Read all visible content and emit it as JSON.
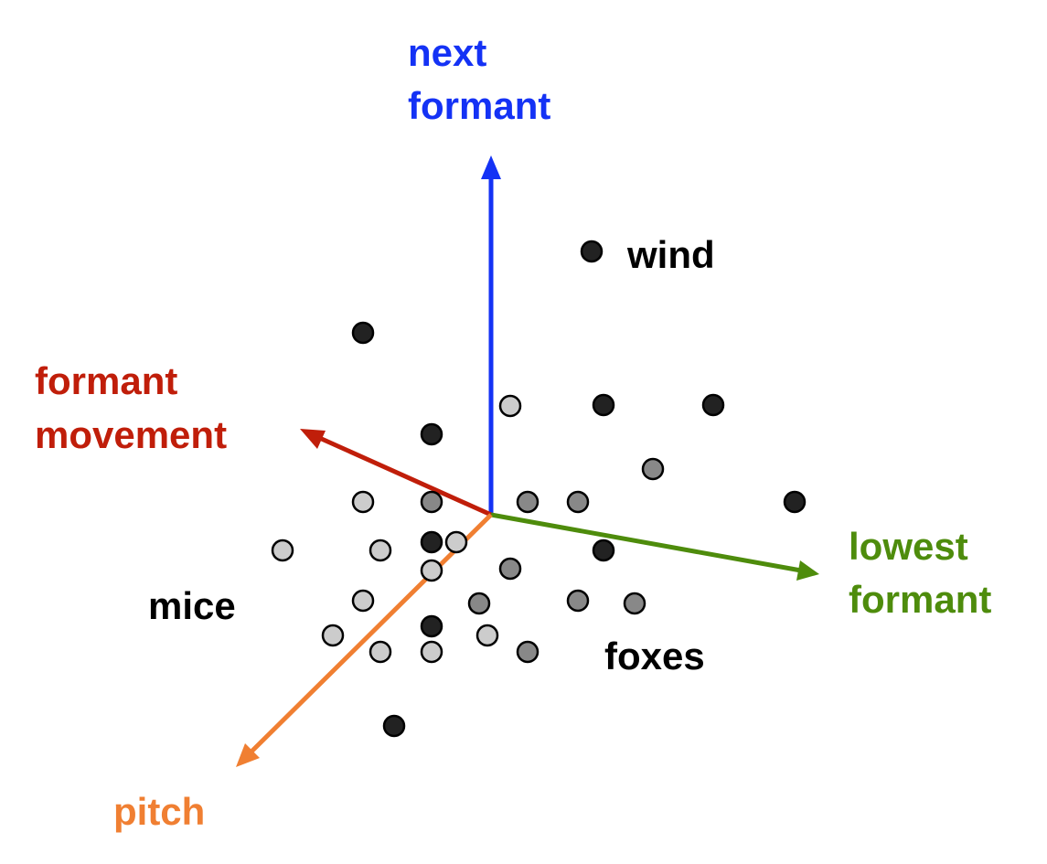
{
  "colors": {
    "next_formant": "#1432f5",
    "formant_movement": "#c01e0a",
    "lowest_formant": "#4e8c0c",
    "pitch": "#f07f32",
    "text": "#000000",
    "dot_dark": "#222222",
    "dot_mid": "#888888",
    "dot_light": "#cccccc"
  },
  "axes": {
    "next_formant": {
      "line1": "next",
      "line2": "formant"
    },
    "formant_movement": {
      "line1": "formant",
      "line2": "movement"
    },
    "lowest_formant": {
      "line1": "lowest",
      "line2": "formant"
    },
    "pitch": {
      "line1": "pitch"
    }
  },
  "groups": {
    "wind": "wind",
    "mice": "mice",
    "foxes": "foxes"
  }
}
